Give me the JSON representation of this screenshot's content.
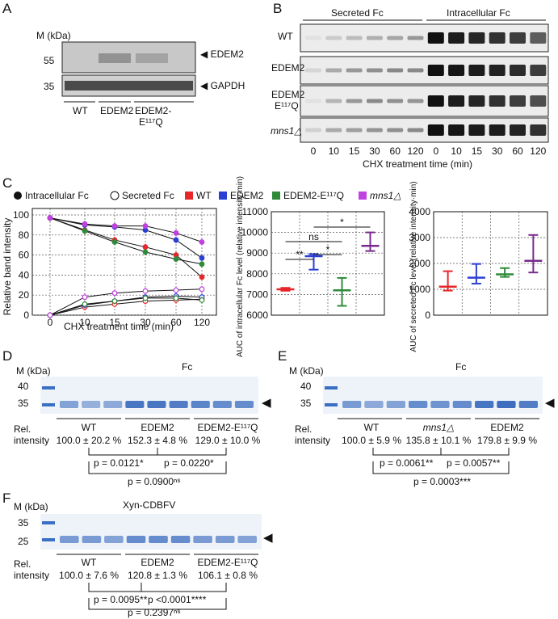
{
  "panels": {
    "A": "A",
    "B": "B",
    "C": "C",
    "D": "D",
    "E": "E",
    "F": "F"
  },
  "panel_a": {
    "mw_label": "M (kDa)",
    "markers": [
      "55",
      "35"
    ],
    "band_labels": [
      "EDEM2",
      "GAPDH"
    ],
    "lanes": [
      "WT",
      "EDEM2",
      "EDEM2-",
      "E¹¹⁷Q"
    ]
  },
  "panel_b": {
    "headers": [
      "Secreted Fc",
      "Intracellular Fc"
    ],
    "rows": [
      "WT",
      "EDEM2",
      "EDEM2",
      "E¹¹⁷Q",
      "mns1△"
    ],
    "times": [
      "0",
      "10",
      "15",
      "30",
      "60",
      "120",
      "0",
      "10",
      "15",
      "30",
      "60",
      "120"
    ],
    "xlabel": "CHX treatment time (min)"
  },
  "panel_c": {
    "legend": [
      "Intracellular Fc",
      "Secreted Fc",
      "WT",
      "EDEM2",
      "EDEM2-E¹¹⁷Q",
      "mns1△"
    ],
    "significance": [
      "*",
      "ns",
      "**",
      "*"
    ]
  },
  "chart_data": [
    {
      "type": "line",
      "title": "",
      "xlabel": "CHX treatment time (min)",
      "ylabel": "Relative band intensity",
      "x": [
        0,
        10,
        15,
        30,
        60,
        120
      ],
      "xticks": [
        "0",
        "10",
        "15",
        "30",
        "60",
        "120"
      ],
      "ylim": [
        0,
        100
      ],
      "yticks": [
        "0",
        "20",
        "40",
        "60",
        "80",
        "100"
      ],
      "colors": {
        "WT": "#e8262a",
        "EDEM2": "#2b3fd4",
        "EDEM2-E117Q": "#2e8b3a",
        "mns1": "#c040e0"
      },
      "series": [
        {
          "name": "WT",
          "kind": "Intracellular",
          "values": [
            97,
            85,
            75,
            68,
            60,
            38
          ]
        },
        {
          "name": "EDEM2",
          "kind": "Intracellular",
          "values": [
            97,
            90,
            88,
            85,
            75,
            57
          ]
        },
        {
          "name": "EDEM2-E117Q",
          "kind": "Intracellular",
          "values": [
            97,
            84,
            73,
            63,
            56,
            51
          ]
        },
        {
          "name": "mns1",
          "kind": "Intracellular",
          "values": [
            97,
            91,
            89,
            89,
            82,
            73
          ]
        },
        {
          "name": "WT",
          "kind": "Secreted",
          "values": [
            0,
            8,
            11,
            14,
            15,
            16
          ]
        },
        {
          "name": "EDEM2",
          "kind": "Secreted",
          "values": [
            0,
            10,
            14,
            18,
            19,
            18
          ]
        },
        {
          "name": "EDEM2-E117Q",
          "kind": "Secreted",
          "values": [
            0,
            11,
            14,
            17,
            17,
            15
          ]
        },
        {
          "name": "mns1",
          "kind": "Secreted",
          "values": [
            0,
            18,
            22,
            24,
            25,
            26
          ]
        }
      ],
      "grid": true
    },
    {
      "type": "scatter",
      "ylabel": "AUC of intracellular Fc level (relative intensity·min)",
      "ylim": [
        6000,
        11000
      ],
      "yticks": [
        "6000",
        "7000",
        "8000",
        "9000",
        "10000",
        "11000"
      ],
      "groups": [
        {
          "name": "WT",
          "mean": 7250,
          "low": 7180,
          "high": 7320
        },
        {
          "name": "EDEM2",
          "mean": 8850,
          "low": 8200,
          "high": 8950
        },
        {
          "name": "EDEM2-E117Q",
          "mean": 7200,
          "low": 6450,
          "high": 7800
        },
        {
          "name": "mns1",
          "mean": 9350,
          "low": 9100,
          "high": 10000
        }
      ],
      "grid": true
    },
    {
      "type": "scatter",
      "ylabel": "AUC of secreted Fc level (relative intensity·min)",
      "ylim": [
        0,
        4000
      ],
      "yticks": [
        "0",
        "1000",
        "2000",
        "3000",
        "4000"
      ],
      "groups": [
        {
          "name": "WT",
          "mean": 1100,
          "low": 950,
          "high": 1700
        },
        {
          "name": "EDEM2",
          "mean": 1450,
          "low": 1220,
          "high": 1980
        },
        {
          "name": "EDEM2-E117Q",
          "mean": 1580,
          "low": 1480,
          "high": 1820
        },
        {
          "name": "mns1",
          "mean": 2100,
          "low": 1650,
          "high": 3100
        }
      ],
      "grid": true
    }
  ],
  "panel_d": {
    "title": "Fc",
    "mw_label": "M (kDa)",
    "markers": [
      "40",
      "35"
    ],
    "rel": [
      "Rel.",
      "intensity"
    ],
    "groups": [
      "WT",
      "EDEM2",
      "EDEM2-E¹¹⁷Q"
    ],
    "values": [
      "100.0 ± 20.2 %",
      "152.3 ± 4.8 %",
      "129.0 ± 10.0 %"
    ],
    "pvalues": [
      "p = 0.0121*",
      "p = 0.0220*",
      "p = 0.0900ⁿˢ"
    ]
  },
  "panel_e": {
    "title": "Fc",
    "mw_label": "M (kDa)",
    "markers": [
      "40",
      "35"
    ],
    "rel": [
      "Rel.",
      "intensity"
    ],
    "groups": [
      "WT",
      "mns1△",
      "EDEM2"
    ],
    "values": [
      "100.0 ± 5.9 %",
      "135.8 ± 10.1 %",
      "179.8 ± 9.9 %"
    ],
    "pvalues": [
      "p = 0.0061**",
      "p = 0.0057**",
      "p = 0.0003***"
    ]
  },
  "panel_f": {
    "title": "Xyn-CDBFV",
    "mw_label": "M (kDa)",
    "markers": [
      "35",
      "25"
    ],
    "rel": [
      "Rel.",
      "intensity"
    ],
    "groups": [
      "WT",
      "EDEM2",
      "EDEM2-E¹¹⁷Q"
    ],
    "values": [
      "100.0 ± 7.6 %",
      "120.8 ± 1.3 %",
      "106.1 ± 0.8 %"
    ],
    "pvalues": [
      "p = 0.0095**",
      "p <0.0001****",
      "p = 0.2397ⁿˢ"
    ]
  }
}
